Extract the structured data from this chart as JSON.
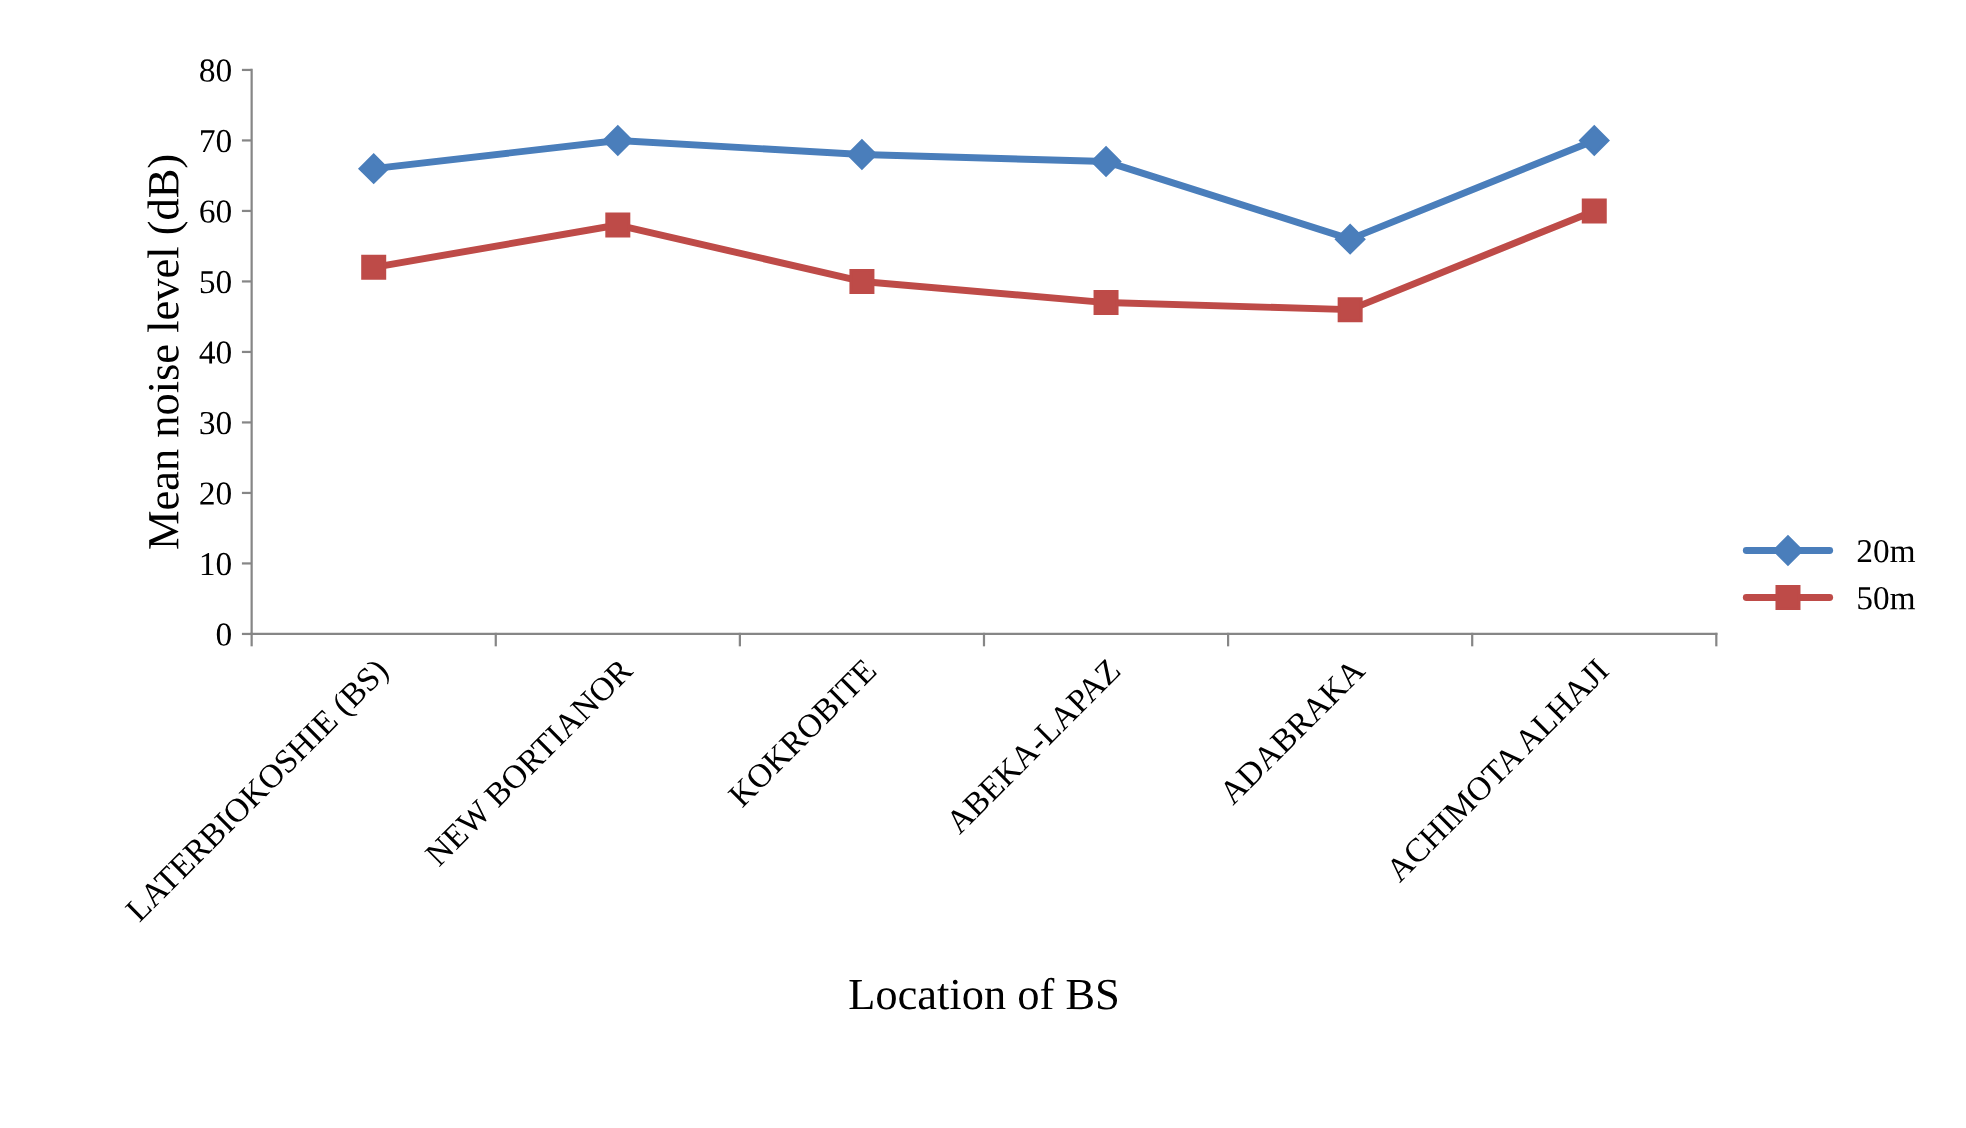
{
  "chart_data": {
    "type": "line",
    "xlabel": "Location of BS",
    "ylabel": "Mean noise level (dB)",
    "categories": [
      "LATERBIOKOSHIE (BS)",
      "NEW BORTIANOR",
      "KOKROBITE",
      "ABEKA-LAPAZ",
      "ADABRAKA",
      "ACHIMOTA ALHAJI"
    ],
    "series": [
      {
        "name": "20m",
        "color": "#4a7ebb",
        "marker": "diamond",
        "values": [
          66,
          70,
          68,
          67,
          56,
          70
        ]
      },
      {
        "name": "50m",
        "color": "#be4b48",
        "marker": "square",
        "values": [
          52,
          58,
          50,
          47,
          46,
          60
        ]
      }
    ],
    "ylim": [
      0,
      80
    ],
    "yticks": [
      0,
      10,
      20,
      30,
      40,
      50,
      60,
      70,
      80
    ],
    "grid": false,
    "legend": "right",
    "line_style": "solid"
  }
}
